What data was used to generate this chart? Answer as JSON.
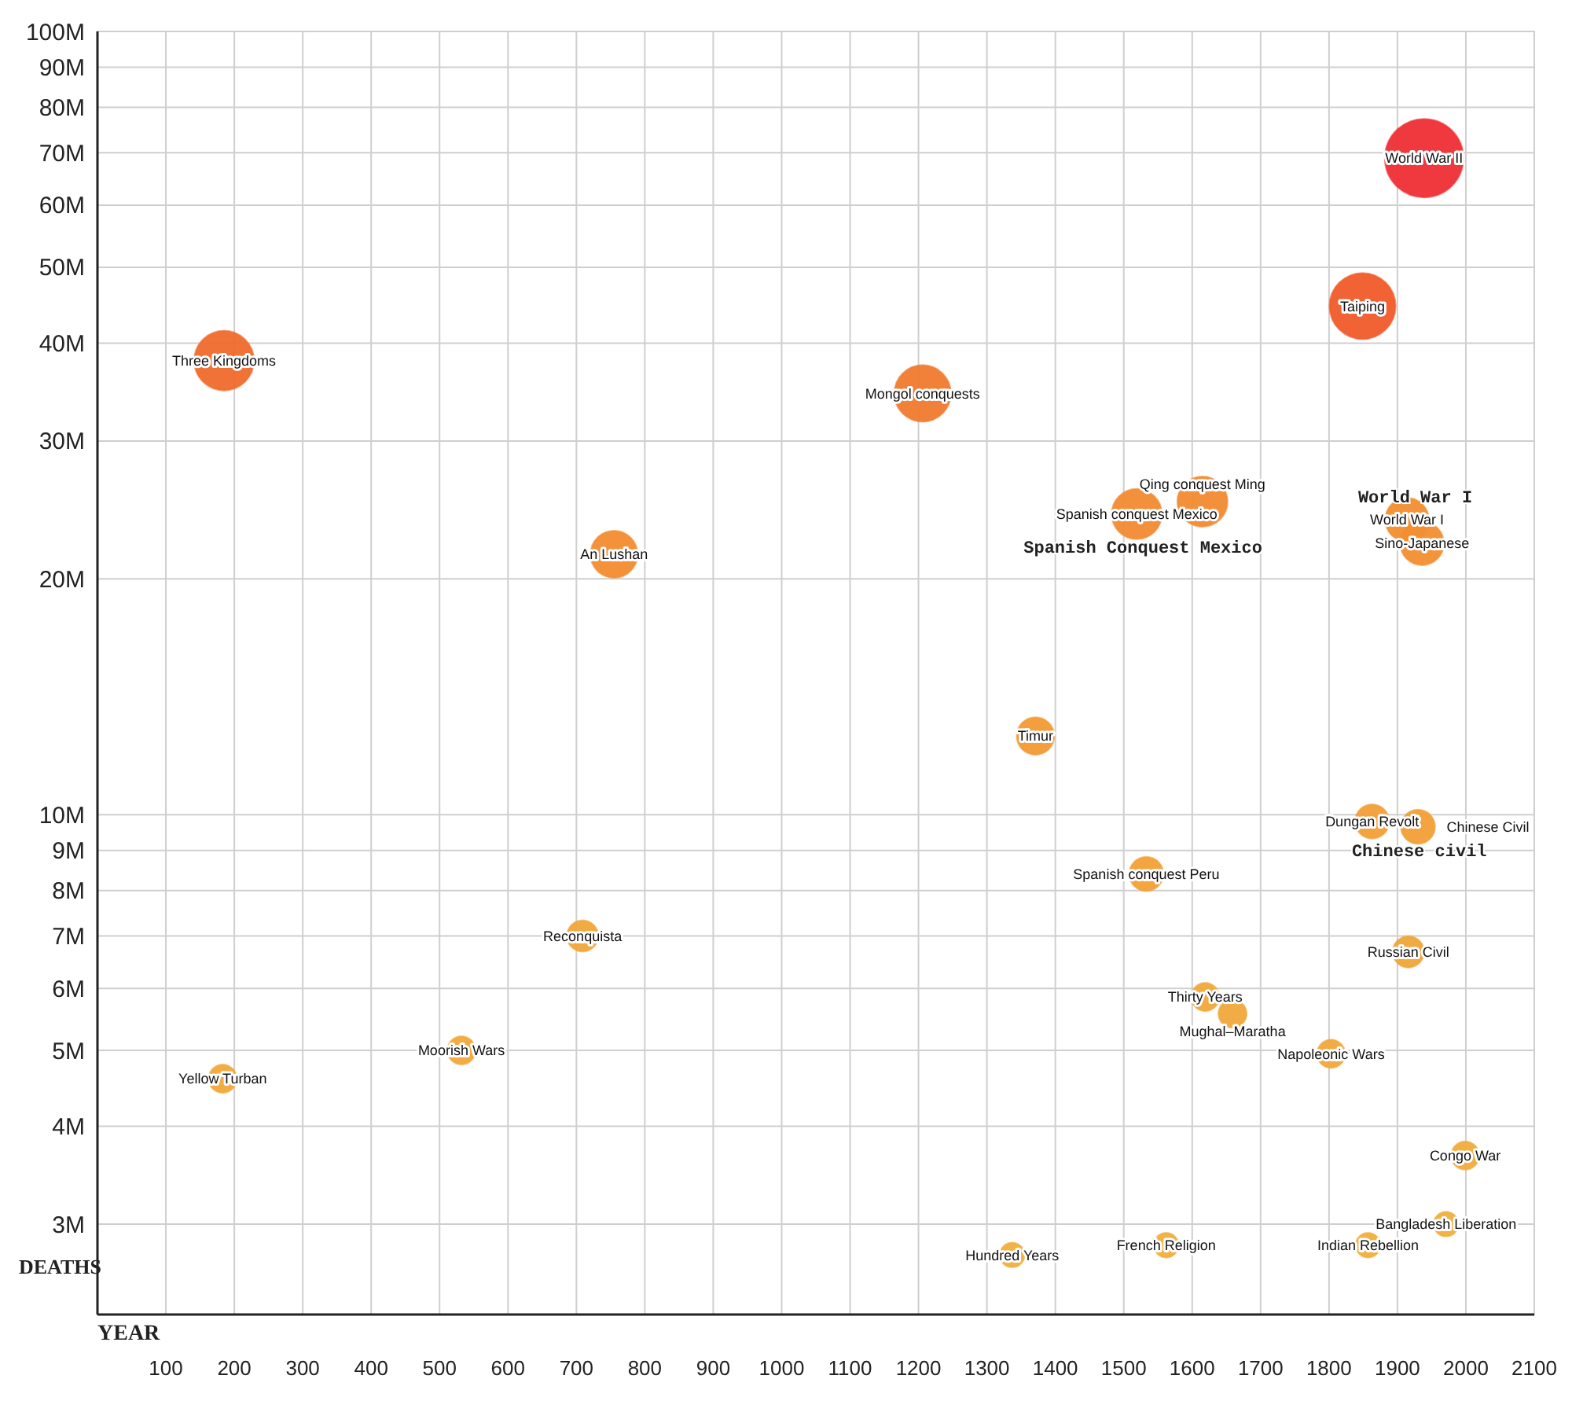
{
  "chart_data": {
    "type": "bubble",
    "xlabel": "YEAR",
    "ylabel": "DEATHS",
    "log": "y",
    "grid": true,
    "marker": "circle",
    "xlim": [
      0,
      2100
    ],
    "xticks": [
      100,
      200,
      300,
      400,
      500,
      600,
      700,
      800,
      900,
      1000,
      1100,
      1200,
      1300,
      1400,
      1500,
      1600,
      1700,
      1800,
      1900,
      2000,
      2100
    ],
    "ylim": [
      2300000,
      100000000
    ],
    "yticks": [
      {
        "value": 3000000,
        "label": "3M"
      },
      {
        "value": 4000000,
        "label": "4M"
      },
      {
        "value": 5000000,
        "label": "5M"
      },
      {
        "value": 6000000,
        "label": "6M"
      },
      {
        "value": 7000000,
        "label": "7M"
      },
      {
        "value": 8000000,
        "label": "8M"
      },
      {
        "value": 9000000,
        "label": "9M"
      },
      {
        "value": 10000000,
        "label": "10M"
      },
      {
        "value": 20000000,
        "label": "20M"
      },
      {
        "value": 30000000,
        "label": "30M"
      },
      {
        "value": 40000000,
        "label": "40M"
      },
      {
        "value": 50000000,
        "label": "50M"
      },
      {
        "value": 60000000,
        "label": "60M"
      },
      {
        "value": 70000000,
        "label": "70M"
      },
      {
        "value": 80000000,
        "label": "80M"
      },
      {
        "value": 90000000,
        "label": "90M"
      },
      {
        "value": 100000000,
        "label": "100M"
      }
    ],
    "series": [
      {
        "name": "Three Kingdoms",
        "color": "#f06a2c",
        "x": [
          185
        ],
        "values": [
          38000000
        ],
        "sizes": [
          0.58
        ]
      },
      {
        "name": "Yellow Turban",
        "color": "#f0a93a",
        "x": [
          183
        ],
        "values": [
          4600000
        ],
        "sizes": [
          0.13
        ]
      },
      {
        "name": "Moorish Wars",
        "color": "#f0a93a",
        "x": [
          532
        ],
        "values": [
          5000000
        ],
        "sizes": [
          0.13
        ]
      },
      {
        "name": "An Lushan",
        "color": "#f28c30",
        "x": [
          755
        ],
        "values": [
          21500000
        ],
        "sizes": [
          0.36
        ]
      },
      {
        "name": "Reconquista",
        "color": "#f0a63a",
        "x": [
          709
        ],
        "values": [
          7000000
        ],
        "sizes": [
          0.16
        ]
      },
      {
        "name": "Mongol conquests",
        "color": "#f07a2e",
        "x": [
          1206
        ],
        "values": [
          34500000
        ],
        "sizes": [
          0.52
        ]
      },
      {
        "name": "Timur",
        "color": "#f29a34",
        "x": [
          1371
        ],
        "values": [
          12600000
        ],
        "sizes": [
          0.23
        ]
      },
      {
        "name": "Hundred Years",
        "color": "#f0ae3c",
        "x": [
          1337
        ],
        "values": [
          2740000
        ],
        "sizes": [
          0.1
        ]
      },
      {
        "name": "Spanish conquest Mexico",
        "color": "#f28a30",
        "x": [
          1519
        ],
        "values": [
          24200000
        ],
        "sizes": [
          0.41
        ]
      },
      {
        "name": "Qing conquest Ming",
        "color": "#f28a30",
        "x": [
          1615
        ],
        "values": [
          25100000
        ],
        "sizes": [
          0.41
        ]
      },
      {
        "name": "Spanish conquest Peru",
        "color": "#f2a036",
        "x": [
          1533
        ],
        "values": [
          8400000
        ],
        "sizes": [
          0.19
        ]
      },
      {
        "name": "French Religion",
        "color": "#f0ae3c",
        "x": [
          1562
        ],
        "values": [
          2820000
        ],
        "sizes": [
          0.1
        ]
      },
      {
        "name": "Thirty Years",
        "color": "#f0a83a",
        "x": [
          1619
        ],
        "values": [
          5850000
        ],
        "sizes": [
          0.13
        ]
      },
      {
        "name": "Mughal–Maratha",
        "color": "#f0a83a",
        "x": [
          1659
        ],
        "values": [
          5570000
        ],
        "sizes": [
          0.13
        ]
      },
      {
        "name": "Napoleonic Wars",
        "color": "#f0a83a",
        "x": [
          1803
        ],
        "values": [
          4950000
        ],
        "sizes": [
          0.13
        ]
      },
      {
        "name": "Dungan Revolt",
        "color": "#f29e36",
        "x": [
          1863
        ],
        "values": [
          9800000
        ],
        "sizes": [
          0.19
        ]
      },
      {
        "name": "Chinese Civil",
        "color": "#f29e36",
        "x": [
          1930
        ],
        "values": [
          9650000
        ],
        "sizes": [
          0.19
        ]
      },
      {
        "name": "Russian Civil",
        "color": "#f0a438",
        "x": [
          1916
        ],
        "values": [
          6680000
        ],
        "sizes": [
          0.16
        ]
      },
      {
        "name": "Indian Rebellion",
        "color": "#f0ae3c",
        "x": [
          1857
        ],
        "values": [
          2820000
        ],
        "sizes": [
          0.1
        ]
      },
      {
        "name": "Bangladesh Liberation",
        "color": "#f0ae3c",
        "x": [
          1971
        ],
        "values": [
          3000000
        ],
        "sizes": [
          0.1
        ]
      },
      {
        "name": "Congo War",
        "color": "#f0ac3c",
        "x": [
          1999
        ],
        "values": [
          3670000
        ],
        "sizes": [
          0.13
        ]
      },
      {
        "name": "Taiping",
        "color": "#f05a2a",
        "x": [
          1849
        ],
        "values": [
          44600000
        ],
        "sizes": [
          0.71
        ]
      },
      {
        "name": "World War II",
        "color": "#ee2e34",
        "x": [
          1939
        ],
        "values": [
          68900000
        ],
        "sizes": [
          1
        ]
      },
      {
        "name": "World War I",
        "color": "#f28e30",
        "x": [
          1914
        ],
        "values": [
          23800000
        ],
        "sizes": [
          0.31
        ]
      },
      {
        "name": "Sino-Japanese",
        "color": "#f28e30",
        "x": [
          1936
        ],
        "values": [
          22200000
        ],
        "sizes": [
          0.31
        ]
      }
    ],
    "annotations": [
      {
        "text": "World War I",
        "x": 1926,
        "y": 25500000
      },
      {
        "text": "Spanish Conquest Mexico",
        "x": 1528,
        "y": 22000000
      },
      {
        "text": "Chinese civil",
        "x": 1932,
        "y": 9000000
      }
    ]
  }
}
